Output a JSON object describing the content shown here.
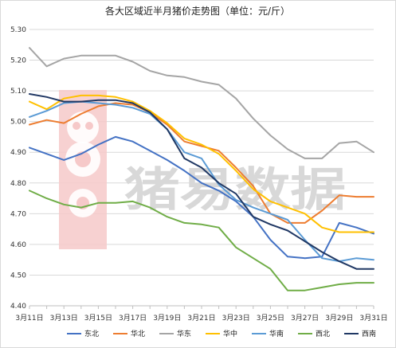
{
  "chart_data": {
    "type": "line",
    "title": "各大区域近半月猪价走势图（单位：元/斤）",
    "xlabel": "",
    "ylabel": "",
    "ylim": [
      4.4,
      5.3
    ],
    "yticks": [
      "5.30",
      "5.20",
      "5.10",
      "5.00",
      "4.90",
      "4.80",
      "4.70",
      "4.60",
      "4.50",
      "4.40"
    ],
    "x": [
      "3月11日",
      "3月12日",
      "3月13日",
      "3月14日",
      "3月15日",
      "3月16日",
      "3月17日",
      "3月18日",
      "3月19日",
      "3月20日",
      "3月21日",
      "3月22日",
      "3月23日",
      "3月24日",
      "3月25日",
      "3月26日",
      "3月27日",
      "3月28日",
      "3月29日",
      "3月30日",
      "3月31日"
    ],
    "xtick_labels": [
      "3月11日",
      "3月13日",
      "3月15日",
      "3月17日",
      "3月19日",
      "3月21日",
      "3月23日",
      "3月25日",
      "3月27日",
      "3月29日",
      "3月31日"
    ],
    "grid": true,
    "legend_position": "bottom",
    "watermark": "猪易数据",
    "series": [
      {
        "name": "东北",
        "color": "#4472c4",
        "values": [
          4.915,
          4.895,
          4.875,
          4.895,
          4.925,
          4.95,
          4.935,
          4.905,
          4.875,
          4.84,
          4.8,
          4.775,
          4.74,
          4.69,
          4.615,
          4.56,
          4.555,
          4.56,
          4.67,
          4.655,
          4.635
        ]
      },
      {
        "name": "华北",
        "color": "#ed7d31",
        "values": [
          4.99,
          5.005,
          4.995,
          5.025,
          5.05,
          5.06,
          5.055,
          5.03,
          4.99,
          4.935,
          4.92,
          4.905,
          4.85,
          4.79,
          4.7,
          4.67,
          4.67,
          4.71,
          4.76,
          4.755,
          4.755
        ]
      },
      {
        "name": "华东",
        "color": "#a5a5a5",
        "values": [
          5.24,
          5.18,
          5.205,
          5.215,
          5.215,
          5.215,
          5.195,
          5.165,
          5.15,
          5.145,
          5.13,
          5.12,
          5.075,
          5.01,
          4.955,
          4.91,
          4.88,
          4.88,
          4.93,
          4.935,
          4.9
        ]
      },
      {
        "name": "华中",
        "color": "#ffc000",
        "values": [
          5.065,
          5.04,
          5.075,
          5.085,
          5.085,
          5.08,
          5.065,
          5.035,
          4.995,
          4.945,
          4.925,
          4.895,
          4.84,
          4.78,
          4.74,
          4.72,
          4.7,
          4.655,
          4.64,
          4.64,
          4.64
        ]
      },
      {
        "name": "华南",
        "color": "#5b9bd5",
        "values": [
          5.015,
          5.035,
          5.06,
          5.065,
          5.06,
          5.055,
          5.045,
          5.025,
          4.975,
          4.9,
          4.88,
          4.795,
          4.745,
          4.72,
          4.7,
          4.68,
          4.615,
          4.555,
          4.545,
          4.555,
          4.55
        ]
      },
      {
        "name": "西北",
        "color": "#70ad47",
        "values": [
          4.775,
          4.75,
          4.73,
          4.72,
          4.735,
          4.735,
          4.74,
          4.72,
          4.69,
          4.67,
          4.665,
          4.655,
          4.59,
          4.555,
          4.52,
          4.45,
          4.45,
          4.46,
          4.47,
          4.475,
          4.475
        ]
      },
      {
        "name": "西南",
        "color": "#203864",
        "values": [
          5.09,
          5.08,
          5.065,
          5.065,
          5.07,
          5.07,
          5.06,
          5.03,
          4.975,
          4.88,
          4.85,
          4.8,
          4.765,
          4.69,
          4.665,
          4.645,
          4.61,
          4.575,
          4.545,
          4.52,
          4.52
        ]
      }
    ]
  }
}
